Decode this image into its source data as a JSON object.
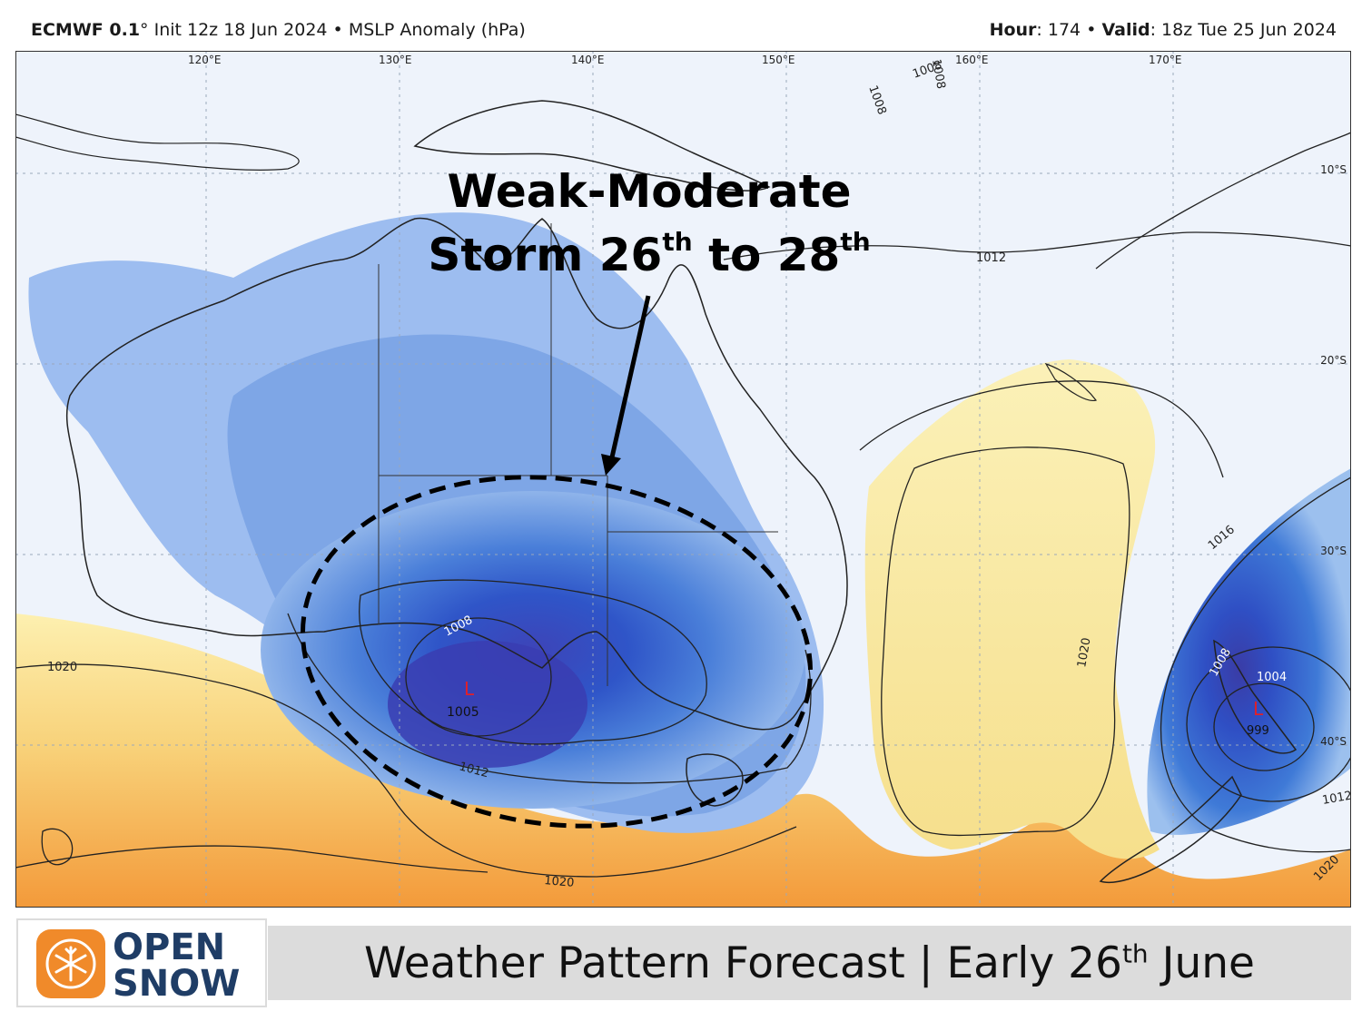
{
  "header": {
    "model": "ECMWF 0.1",
    "degree": "°",
    "init": "Init 12z 18 Jun 2024",
    "bullet": "•",
    "field": "MSLP Anomaly (hPa)",
    "hour_label": "Hour",
    "hour_value": ": 174",
    "valid_label": "Valid",
    "valid_value": ": 18z Tue 25 Jun 2024"
  },
  "map": {
    "lon_labels": [
      "120°E",
      "130°E",
      "140°E",
      "150°E",
      "160°E",
      "170°E"
    ],
    "lat_labels": [
      "10°S",
      "20°S",
      "30°S",
      "40°S"
    ],
    "isobar_labels": [
      "1008",
      "1008",
      "1008",
      "1012",
      "1016",
      "1020",
      "1020",
      "1020",
      "1020",
      "1008",
      "1012",
      "1004",
      "1008",
      "1012"
    ],
    "lows": [
      {
        "symbol": "L",
        "pressure": "1005"
      },
      {
        "symbol": "L",
        "pressure": "999"
      }
    ],
    "colors": {
      "negative_anomaly": "#3a4fc0",
      "positive_anomaly": "#f3a23a",
      "background": "#eef3fb",
      "low_marker": "#e0202a"
    }
  },
  "annotation": {
    "line1": "Weak-Moderate",
    "line2a": "Storm 26",
    "sup1": "th",
    "line2b": " to 28",
    "sup2": "th"
  },
  "footer": {
    "title_a": "Weather Pattern Forecast | Early 26",
    "title_sup": "th",
    "title_b": " June",
    "logo_line1": "OPEN",
    "logo_line2": "SNOW",
    "logo_colors": {
      "orange": "#f08a2a",
      "navy": "#1f3d66"
    }
  }
}
